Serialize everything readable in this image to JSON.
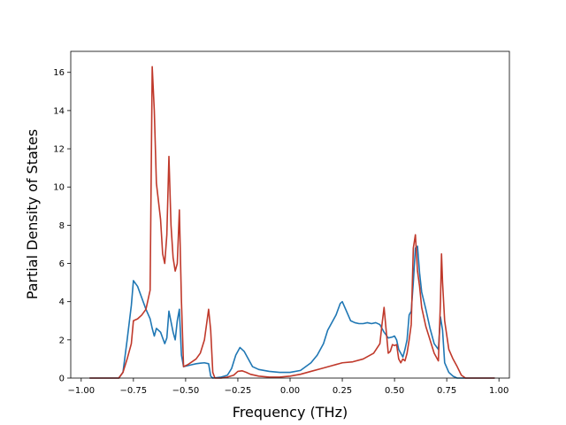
{
  "chart_data": {
    "type": "line",
    "title": "",
    "xlabel": "Frequency (THz)",
    "ylabel": "Partial Density of States",
    "xlim": [
      -1.05,
      1.05
    ],
    "ylim": [
      0,
      17.1
    ],
    "xticks": [
      -1.0,
      -0.75,
      -0.5,
      -0.25,
      0.0,
      0.25,
      0.5,
      0.75,
      1.0
    ],
    "xtick_labels": [
      "−1.00",
      "−0.75",
      "−0.50",
      "−0.25",
      "0.00",
      "0.25",
      "0.50",
      "0.75",
      "1.00"
    ],
    "yticks": [
      0,
      2,
      4,
      6,
      8,
      10,
      12,
      14,
      16
    ],
    "ytick_labels": [
      "0",
      "2",
      "4",
      "6",
      "8",
      "10",
      "12",
      "14",
      "16"
    ],
    "grid": false,
    "legend": "none",
    "series": [
      {
        "color": "#1f77b4",
        "points": [
          [
            -0.96,
            0
          ],
          [
            -0.82,
            0
          ],
          [
            -0.8,
            0.3
          ],
          [
            -0.78,
            2.0
          ],
          [
            -0.76,
            3.8
          ],
          [
            -0.75,
            5.1
          ],
          [
            -0.73,
            4.8
          ],
          [
            -0.71,
            4.2
          ],
          [
            -0.69,
            3.6
          ],
          [
            -0.67,
            3.1
          ],
          [
            -0.66,
            2.6
          ],
          [
            -0.65,
            2.2
          ],
          [
            -0.64,
            2.6
          ],
          [
            -0.62,
            2.4
          ],
          [
            -0.6,
            1.8
          ],
          [
            -0.59,
            2.1
          ],
          [
            -0.58,
            3.5
          ],
          [
            -0.56,
            2.4
          ],
          [
            -0.55,
            2.0
          ],
          [
            -0.54,
            3.0
          ],
          [
            -0.53,
            3.6
          ],
          [
            -0.52,
            1.2
          ],
          [
            -0.51,
            0.6
          ],
          [
            -0.49,
            0.65
          ],
          [
            -0.47,
            0.7
          ],
          [
            -0.45,
            0.75
          ],
          [
            -0.43,
            0.78
          ],
          [
            -0.41,
            0.8
          ],
          [
            -0.39,
            0.75
          ],
          [
            -0.38,
            0.1
          ],
          [
            -0.37,
            0
          ],
          [
            -0.33,
            0.05
          ],
          [
            -0.3,
            0.15
          ],
          [
            -0.28,
            0.5
          ],
          [
            -0.26,
            1.2
          ],
          [
            -0.24,
            1.6
          ],
          [
            -0.22,
            1.4
          ],
          [
            -0.2,
            1.0
          ],
          [
            -0.18,
            0.6
          ],
          [
            -0.15,
            0.45
          ],
          [
            -0.1,
            0.35
          ],
          [
            -0.05,
            0.3
          ],
          [
            0.0,
            0.3
          ],
          [
            0.05,
            0.4
          ],
          [
            0.1,
            0.8
          ],
          [
            0.13,
            1.2
          ],
          [
            0.16,
            1.8
          ],
          [
            0.18,
            2.5
          ],
          [
            0.2,
            2.9
          ],
          [
            0.22,
            3.3
          ],
          [
            0.24,
            3.9
          ],
          [
            0.25,
            4.0
          ],
          [
            0.27,
            3.5
          ],
          [
            0.29,
            3.0
          ],
          [
            0.31,
            2.9
          ],
          [
            0.33,
            2.85
          ],
          [
            0.35,
            2.85
          ],
          [
            0.37,
            2.9
          ],
          [
            0.39,
            2.85
          ],
          [
            0.41,
            2.9
          ],
          [
            0.43,
            2.8
          ],
          [
            0.45,
            2.4
          ],
          [
            0.47,
            2.1
          ],
          [
            0.49,
            2.15
          ],
          [
            0.5,
            2.2
          ],
          [
            0.51,
            2.0
          ],
          [
            0.52,
            1.5
          ],
          [
            0.53,
            1.3
          ],
          [
            0.54,
            1.1
          ],
          [
            0.55,
            1.5
          ],
          [
            0.56,
            2.0
          ],
          [
            0.57,
            3.3
          ],
          [
            0.58,
            3.5
          ],
          [
            0.59,
            5.0
          ],
          [
            0.6,
            6.8
          ],
          [
            0.61,
            6.9
          ],
          [
            0.62,
            5.5
          ],
          [
            0.63,
            4.5
          ],
          [
            0.65,
            3.6
          ],
          [
            0.67,
            2.6
          ],
          [
            0.69,
            1.8
          ],
          [
            0.71,
            1.5
          ],
          [
            0.72,
            3.2
          ],
          [
            0.73,
            2.5
          ],
          [
            0.74,
            0.8
          ],
          [
            0.76,
            0.3
          ],
          [
            0.78,
            0.1
          ],
          [
            0.8,
            0
          ],
          [
            0.98,
            0
          ]
        ]
      },
      {
        "color": "#c0392b",
        "points": [
          [
            -0.96,
            0
          ],
          [
            -0.82,
            0
          ],
          [
            -0.8,
            0.3
          ],
          [
            -0.78,
            1.0
          ],
          [
            -0.76,
            1.8
          ],
          [
            -0.75,
            3.0
          ],
          [
            -0.73,
            3.1
          ],
          [
            -0.71,
            3.3
          ],
          [
            -0.69,
            3.6
          ],
          [
            -0.67,
            4.6
          ],
          [
            -0.66,
            16.3
          ],
          [
            -0.65,
            14.0
          ],
          [
            -0.64,
            10.2
          ],
          [
            -0.62,
            8.3
          ],
          [
            -0.61,
            6.5
          ],
          [
            -0.6,
            6.0
          ],
          [
            -0.59,
            7.5
          ],
          [
            -0.58,
            11.6
          ],
          [
            -0.57,
            8.0
          ],
          [
            -0.56,
            6.3
          ],
          [
            -0.55,
            5.6
          ],
          [
            -0.54,
            6.0
          ],
          [
            -0.53,
            8.8
          ],
          [
            -0.52,
            4.0
          ],
          [
            -0.51,
            0.6
          ],
          [
            -0.49,
            0.7
          ],
          [
            -0.47,
            0.85
          ],
          [
            -0.45,
            1.0
          ],
          [
            -0.43,
            1.3
          ],
          [
            -0.41,
            2.0
          ],
          [
            -0.39,
            3.6
          ],
          [
            -0.38,
            2.5
          ],
          [
            -0.37,
            0.3
          ],
          [
            -0.36,
            0
          ],
          [
            -0.33,
            0
          ],
          [
            -0.3,
            0.05
          ],
          [
            -0.27,
            0.15
          ],
          [
            -0.25,
            0.35
          ],
          [
            -0.23,
            0.38
          ],
          [
            -0.21,
            0.3
          ],
          [
            -0.19,
            0.2
          ],
          [
            -0.15,
            0.1
          ],
          [
            -0.1,
            0.05
          ],
          [
            -0.05,
            0.05
          ],
          [
            0.0,
            0.1
          ],
          [
            0.05,
            0.2
          ],
          [
            0.1,
            0.35
          ],
          [
            0.15,
            0.5
          ],
          [
            0.2,
            0.65
          ],
          [
            0.25,
            0.8
          ],
          [
            0.3,
            0.85
          ],
          [
            0.35,
            1.0
          ],
          [
            0.4,
            1.3
          ],
          [
            0.43,
            1.8
          ],
          [
            0.44,
            2.8
          ],
          [
            0.45,
            3.7
          ],
          [
            0.46,
            2.5
          ],
          [
            0.47,
            1.3
          ],
          [
            0.48,
            1.4
          ],
          [
            0.49,
            1.75
          ],
          [
            0.5,
            1.7
          ],
          [
            0.51,
            1.75
          ],
          [
            0.52,
            1.0
          ],
          [
            0.53,
            0.8
          ],
          [
            0.54,
            1.0
          ],
          [
            0.55,
            0.9
          ],
          [
            0.56,
            1.3
          ],
          [
            0.57,
            2.0
          ],
          [
            0.58,
            2.8
          ],
          [
            0.59,
            6.8
          ],
          [
            0.6,
            7.5
          ],
          [
            0.61,
            5.6
          ],
          [
            0.62,
            4.8
          ],
          [
            0.63,
            3.7
          ],
          [
            0.65,
            2.7
          ],
          [
            0.67,
            2.0
          ],
          [
            0.69,
            1.3
          ],
          [
            0.71,
            0.9
          ],
          [
            0.72,
            4.0
          ],
          [
            0.725,
            6.5
          ],
          [
            0.73,
            5.0
          ],
          [
            0.74,
            3.0
          ],
          [
            0.76,
            1.5
          ],
          [
            0.78,
            1.0
          ],
          [
            0.8,
            0.6
          ],
          [
            0.82,
            0.15
          ],
          [
            0.84,
            0
          ],
          [
            0.98,
            0
          ]
        ]
      }
    ]
  }
}
